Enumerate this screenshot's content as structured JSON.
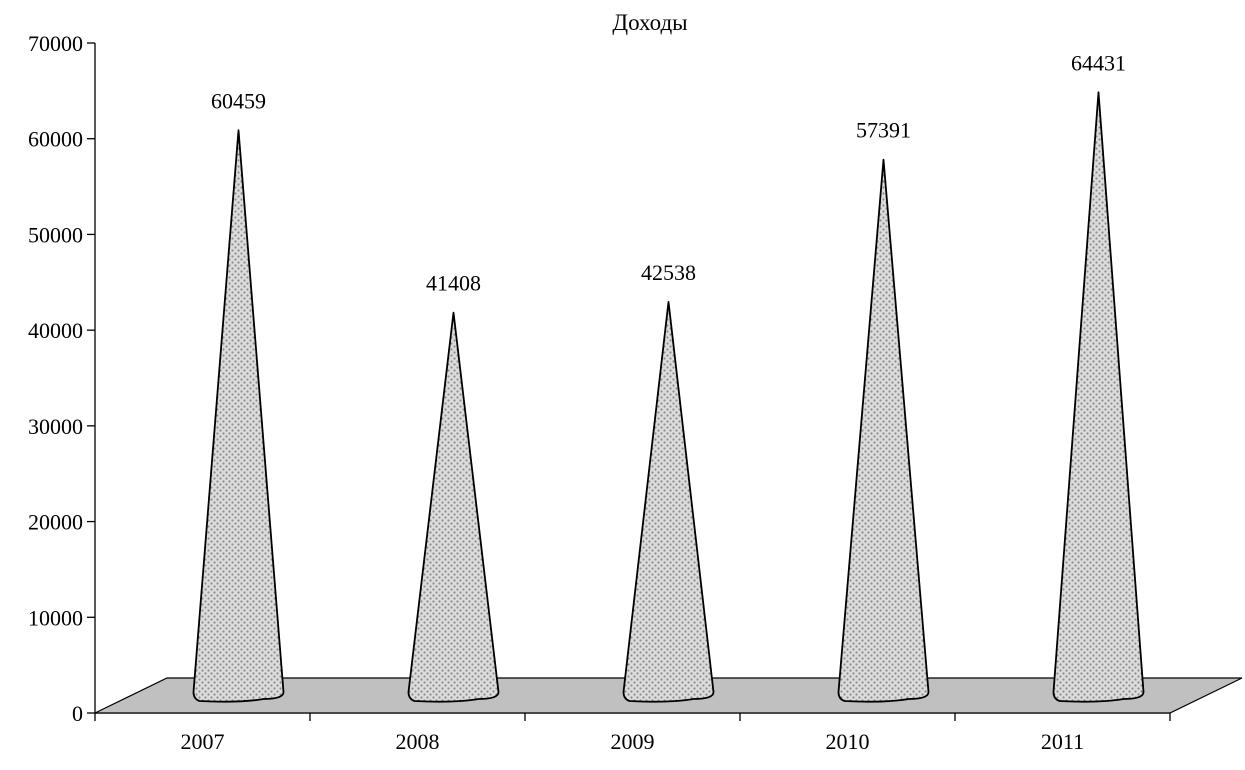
{
  "chart_data": {
    "type": "bar",
    "bar_shape": "cone",
    "title": "Доходы",
    "categories": [
      "2007",
      "2008",
      "2009",
      "2010",
      "2011"
    ],
    "values": [
      60459,
      41408,
      42538,
      57391,
      64431
    ],
    "ylim": [
      0,
      70000
    ],
    "y_ticks": [
      "0",
      "10000",
      "20000",
      "30000",
      "40000",
      "50000",
      "60000",
      "70000"
    ],
    "grid": false,
    "legend": "none",
    "colors": {
      "floor": "#c0c0c0",
      "cone_fill": "#d9d9d9",
      "cone_dots": "#8c8c8c",
      "outline": "#000000"
    }
  }
}
